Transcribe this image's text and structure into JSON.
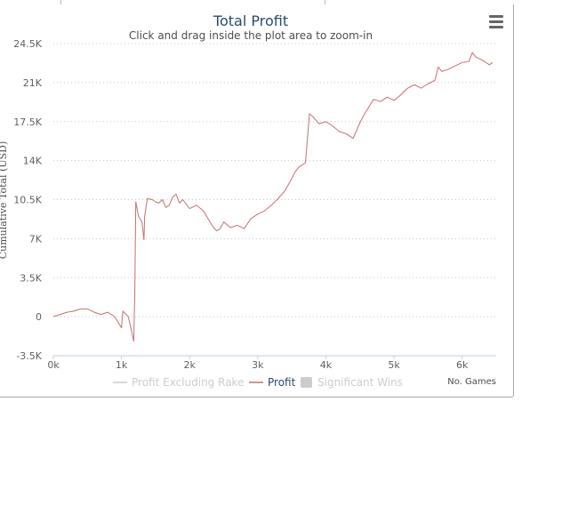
{
  "chart_data": {
    "type": "line",
    "title": "Total Profit",
    "subtitle": "Click and drag inside the plot area to zoom-in",
    "xlabel": "No. Games",
    "ylabel": "Cumulative Total (USD)",
    "xlim": [
      0,
      6500
    ],
    "ylim": [
      -3500,
      24500
    ],
    "x_ticks": [
      0,
      1000,
      2000,
      3000,
      4000,
      5000,
      6000
    ],
    "x_tick_labels": [
      "0k",
      "1k",
      "2k",
      "3k",
      "4k",
      "5k",
      "6k"
    ],
    "y_ticks": [
      24500,
      21000,
      17500,
      14000,
      10500,
      7000,
      3500,
      0,
      -3500
    ],
    "y_tick_labels": [
      "24.5K",
      "21K",
      "17.5K",
      "14K",
      "10.5K",
      "7K",
      "3.5K",
      "0",
      "-3.5K"
    ],
    "grid": "horizontal dotted",
    "legend_position": "bottom",
    "legend": [
      {
        "name": "Profit Excluding Rake",
        "color": "#cccccc",
        "marker": "line",
        "visible": false
      },
      {
        "name": "Profit",
        "color": "#c47070",
        "marker": "line",
        "visible": true
      },
      {
        "name": "Significant Wins",
        "color": "#cccccc",
        "marker": "square",
        "visible": false
      }
    ],
    "series": [
      {
        "name": "Profit",
        "color": "#c47070",
        "x": [
          0,
          100,
          200,
          300,
          400,
          500,
          600,
          700,
          800,
          900,
          1000,
          1020,
          1100,
          1180,
          1195,
          1210,
          1250,
          1300,
          1330,
          1340,
          1380,
          1450,
          1500,
          1550,
          1600,
          1650,
          1700,
          1750,
          1800,
          1850,
          1900,
          2000,
          2100,
          2200,
          2300,
          2350,
          2400,
          2450,
          2500,
          2600,
          2700,
          2800,
          2900,
          3000,
          3100,
          3200,
          3300,
          3400,
          3500,
          3550,
          3600,
          3700,
          3750,
          3760,
          3800,
          3900,
          4000,
          4100,
          4200,
          4300,
          4400,
          4500,
          4550,
          4600,
          4700,
          4800,
          4900,
          5000,
          5100,
          5200,
          5300,
          5400,
          5500,
          5600,
          5650,
          5700,
          5800,
          5900,
          6000,
          6100,
          6150,
          6200,
          6300,
          6400,
          6450
        ],
        "values": [
          0,
          200,
          400,
          500,
          700,
          700,
          400,
          200,
          400,
          0,
          -1000,
          500,
          0,
          -2200,
          2000,
          10300,
          9000,
          8500,
          6900,
          9000,
          10600,
          10500,
          10300,
          10200,
          10500,
          9800,
          10000,
          10700,
          11000,
          10200,
          10500,
          9700,
          10000,
          9500,
          8500,
          8000,
          7700,
          7900,
          8500,
          8000,
          8200,
          7900,
          8800,
          9200,
          9500,
          10000,
          10600,
          11300,
          12400,
          13000,
          13400,
          13800,
          17500,
          18200,
          18000,
          17300,
          17500,
          17100,
          16600,
          16400,
          16000,
          17400,
          18000,
          18500,
          19500,
          19300,
          19700,
          19400,
          19900,
          20500,
          20800,
          20500,
          20900,
          21200,
          22400,
          22000,
          22200,
          22500,
          22800,
          22900,
          23700,
          23300,
          23000,
          22600,
          22800
        ]
      }
    ]
  }
}
